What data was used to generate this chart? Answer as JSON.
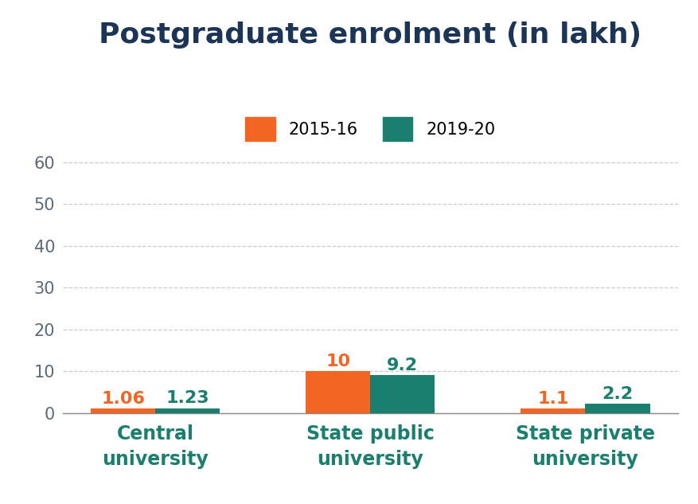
{
  "title": "Postgraduate enrolment (in lakh)",
  "categories": [
    "Central\nuniversity",
    "State public\nuniversity",
    "State private\nuniversity"
  ],
  "series": [
    {
      "label": "2015-16",
      "values": [
        1.06,
        10,
        1.1
      ],
      "color": "#F26522"
    },
    {
      "label": "2019-20",
      "values": [
        1.23,
        9.2,
        2.2
      ],
      "color": "#1A7F6E"
    }
  ],
  "ylim": [
    0,
    65
  ],
  "yticks": [
    0,
    10,
    20,
    30,
    40,
    50,
    60
  ],
  "bar_width": 0.3,
  "title_fontsize": 26,
  "legend_fontsize": 15,
  "tick_fontsize": 15,
  "label_fontsize": 17,
  "value_label_fontsize": 16,
  "background_color": "#FFFFFF",
  "grid_color": "#CCCCCC",
  "title_color": "#1C3557",
  "ytick_color": "#5A6A7A",
  "category_label_color": "#1A7F6E",
  "value_label_color_orange": "#F26522",
  "value_label_color_teal": "#1A7F6E"
}
